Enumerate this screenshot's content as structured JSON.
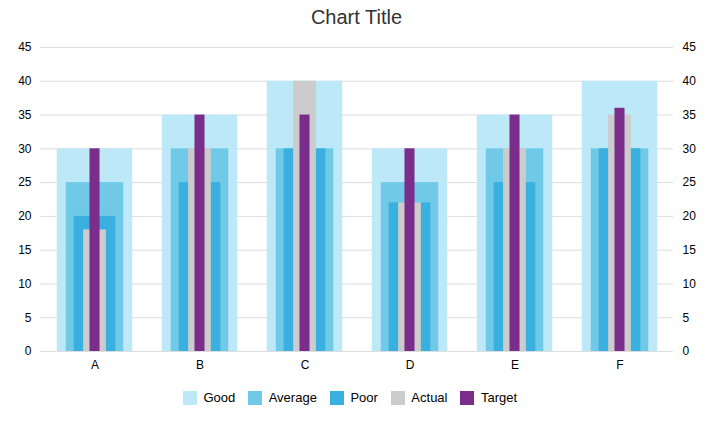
{
  "chart_data": {
    "type": "bar",
    "title": "Chart Title",
    "categories": [
      "A",
      "B",
      "C",
      "D",
      "E",
      "F"
    ],
    "series": [
      {
        "name": "Good",
        "color": "#bde8f7",
        "values": [
          30,
          35,
          40,
          30,
          35,
          40
        ]
      },
      {
        "name": "Average",
        "color": "#71c9e8",
        "values": [
          25,
          30,
          30,
          25,
          30,
          30
        ]
      },
      {
        "name": "Poor",
        "color": "#3ab0e0",
        "values": [
          20,
          25,
          30,
          22,
          25,
          30
        ]
      },
      {
        "name": "Actual",
        "color": "#cccccc",
        "values": [
          18,
          30,
          40,
          22,
          30,
          35
        ]
      },
      {
        "name": "Target",
        "color": "#7b2d8b",
        "values": [
          30,
          35,
          35,
          30,
          35,
          36
        ]
      }
    ],
    "ylim": [
      0,
      45
    ],
    "yticks": [
      0,
      5,
      10,
      15,
      20,
      25,
      30,
      35,
      40,
      45
    ],
    "grid": true,
    "stacked": false,
    "legend": "bottom"
  }
}
